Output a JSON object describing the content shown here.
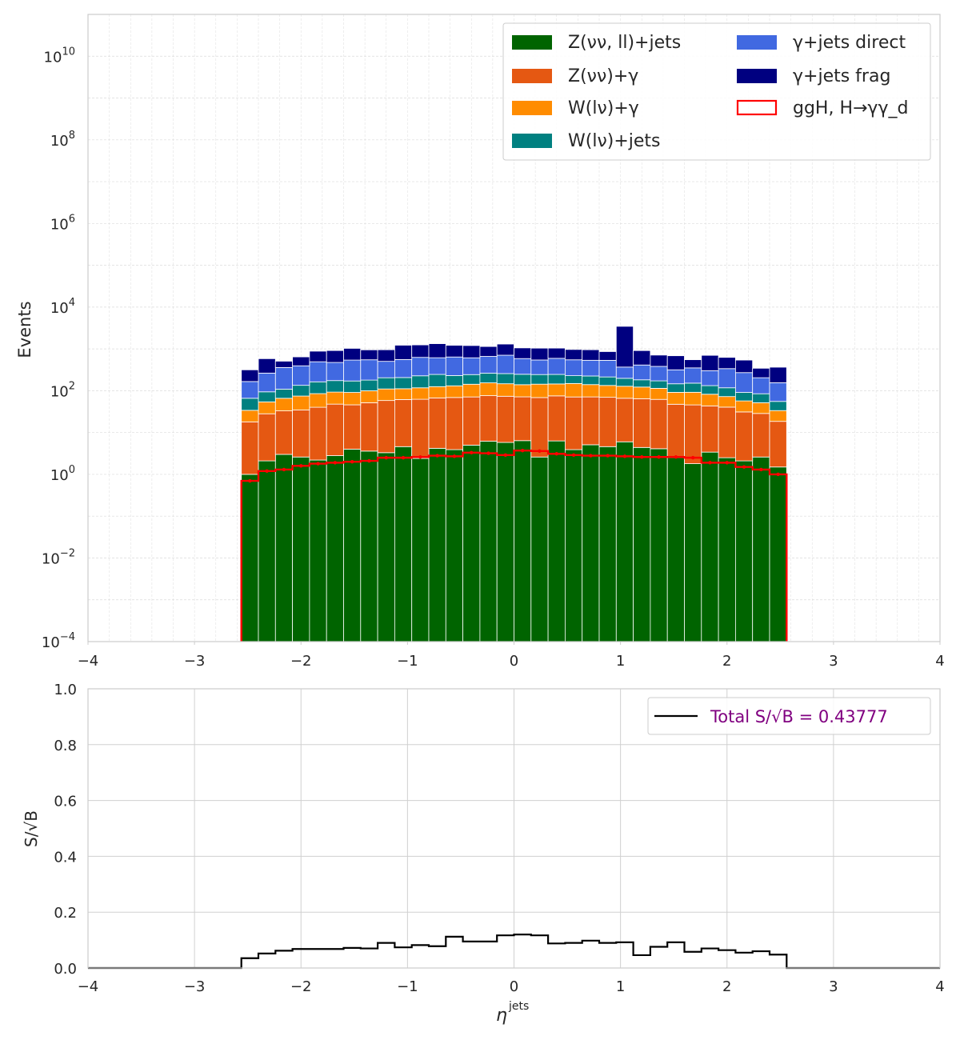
{
  "chart_data": [
    {
      "type": "bar",
      "stacked": true,
      "log_y": true,
      "xlabel": "",
      "ylabel": "Events",
      "xlim": [
        -4,
        4
      ],
      "ylim_exponent": [
        -4,
        11
      ],
      "xticks": [
        "−4",
        "−3",
        "−2",
        "−1",
        "0",
        "1",
        "2",
        "3",
        "4"
      ],
      "ytick_exponents": [
        "−4",
        "−2",
        "0",
        "2",
        "4",
        "6",
        "8",
        "10"
      ],
      "grid": true,
      "legend_position": "top-right",
      "bin_edges": [
        -2.56,
        -2.4,
        -2.24,
        -2.08,
        -1.92,
        -1.76,
        -1.6,
        -1.44,
        -1.28,
        -1.12,
        -0.96,
        -0.8,
        -0.64,
        -0.48,
        -0.32,
        -0.16,
        0.0,
        0.16,
        0.32,
        0.48,
        0.64,
        0.8,
        0.96,
        1.12,
        1.28,
        1.44,
        1.6,
        1.76,
        1.92,
        2.08,
        2.24,
        2.4,
        2.56
      ],
      "series": [
        {
          "name": "Z(νν, ll)+jets",
          "color": "#006400",
          "values": [
            1.0,
            2.1,
            3.0,
            2.6,
            2.2,
            2.8,
            4.0,
            3.6,
            3.3,
            4.6,
            2.4,
            4.2,
            3.9,
            5.0,
            6.2,
            5.8,
            6.4,
            2.6,
            6.3,
            3.9,
            5.1,
            4.6,
            6.0,
            4.4,
            4.1,
            2.5,
            1.8,
            3.4,
            2.5,
            2.1,
            2.6,
            1.5
          ]
        },
        {
          "name": "Z(νν)+γ",
          "color": "#e55812",
          "values": [
            17,
            26,
            30,
            32,
            38,
            45,
            42,
            48,
            55,
            57,
            60,
            63,
            65,
            66,
            70,
            68,
            65,
            66,
            69,
            67,
            66,
            65,
            60,
            60,
            58,
            45,
            44,
            40,
            38,
            29,
            26,
            17
          ]
        },
        {
          "name": "W(lν)+γ",
          "color": "#ff8c00",
          "values": [
            16,
            26,
            33,
            40,
            45,
            45,
            45,
            48,
            52,
            50,
            55,
            58,
            62,
            72,
            78,
            73,
            68,
            75,
            70,
            78,
            69,
            64,
            62,
            58,
            52,
            44,
            46,
            39,
            32,
            26,
            23,
            15
          ]
        },
        {
          "name": "W(lν)+jets",
          "color": "#008080",
          "values": [
            32,
            40,
            43,
            60,
            78,
            82,
            80,
            80,
            94,
            95,
            110,
            120,
            100,
            100,
            108,
            110,
            108,
            100,
            100,
            80,
            85,
            80,
            70,
            60,
            58,
            55,
            60,
            50,
            45,
            34,
            33,
            22
          ]
        },
        {
          "name": "γ+jets direct",
          "color": "#4169e1",
          "values": [
            100,
            170,
            250,
            260,
            330,
            300,
            370,
            370,
            300,
            350,
            400,
            370,
            410,
            370,
            400,
            450,
            340,
            300,
            350,
            320,
            310,
            320,
            170,
            230,
            210,
            170,
            200,
            170,
            220,
            180,
            120,
            100
          ]
        },
        {
          "name": "γ+jets frag",
          "color": "#000080",
          "values": [
            150,
            320,
            150,
            250,
            390,
            440,
            490,
            400,
            450,
            670,
            620,
            720,
            580,
            590,
            480,
            600,
            470,
            500,
            450,
            420,
            420,
            330,
            3100,
            500,
            330,
            370,
            200,
            400,
            290,
            270,
            140,
            210
          ]
        },
        {
          "name": "ggH, H→γγ_d",
          "color": "#ff0000",
          "style": "step",
          "values": [
            0.7,
            1.2,
            1.3,
            1.6,
            1.8,
            1.9,
            2.0,
            2.1,
            2.5,
            2.5,
            2.6,
            2.8,
            2.7,
            3.3,
            3.2,
            2.9,
            3.7,
            3.6,
            3.1,
            2.9,
            2.8,
            2.8,
            2.7,
            2.6,
            2.6,
            2.6,
            2.5,
            1.9,
            1.9,
            1.5,
            1.3,
            1.0
          ]
        }
      ]
    },
    {
      "type": "line",
      "step": true,
      "xlabel": "η",
      "xlabel_sup": "jets",
      "ylabel": "S/√B",
      "xlim": [
        -4,
        4
      ],
      "ylim": [
        0,
        1
      ],
      "xticks": [
        "−4",
        "−3",
        "−2",
        "−1",
        "0",
        "1",
        "2",
        "3",
        "4"
      ],
      "yticks": [
        "0.0",
        "0.2",
        "0.4",
        "0.6",
        "0.8",
        "1.0"
      ],
      "grid": true,
      "legend_position": "top-right",
      "legend_label": "Total S/√B = 0.43777",
      "legend_color": "#800080",
      "series": [
        {
          "name": "Total S/√B = 0.43777",
          "color": "#000000",
          "values": [
            0.035,
            0.052,
            0.062,
            0.068,
            0.068,
            0.068,
            0.072,
            0.07,
            0.09,
            0.074,
            0.082,
            0.078,
            0.112,
            0.095,
            0.095,
            0.117,
            0.12,
            0.117,
            0.088,
            0.09,
            0.098,
            0.09,
            0.092,
            0.046,
            0.076,
            0.092,
            0.058,
            0.07,
            0.064,
            0.055,
            0.06,
            0.048
          ]
        }
      ]
    }
  ]
}
